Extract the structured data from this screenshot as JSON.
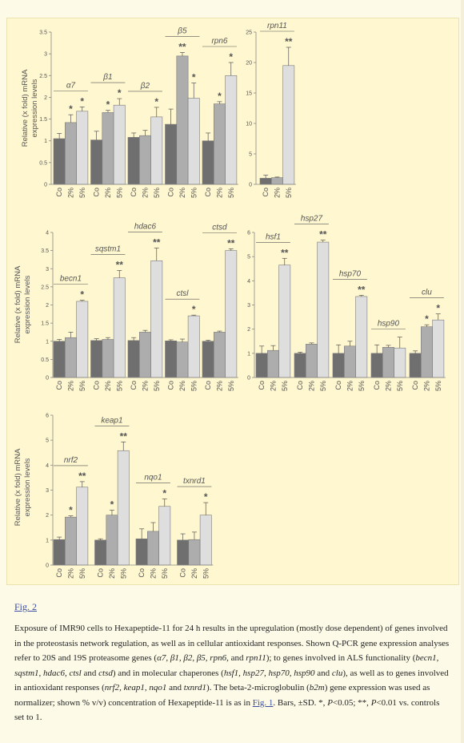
{
  "colors": {
    "background": "#fdfbe8",
    "figure_background": "#fff7cf",
    "bar_co": "#6f6f6f",
    "bar_2": "#adadad",
    "bar_5": "#dedede",
    "link": "#3a4ca0"
  },
  "figure_link": "Fig. 2",
  "caption": {
    "p1": "Exposure of IMR90 cells to Hexapeptide-11 for 24 h results in the upregulation (mostly dose dependent) of genes involved in the proteostasis network regulation, as well as in cellular antioxidant responses. Shown Q-PCR gene expression analyses refer to 20S and 19S proteasome genes (",
    "g1": "α7, β1, β2, β5, rpn6",
    "p2": ", and ",
    "g2": "rpn11",
    "p3": "); to genes involved in ALS functionality (",
    "g3": "becn1, sqstm1, hdac6, ctsl",
    "p4": " and ",
    "g4": "ctsd",
    "p5": ") and in molecular chaperones (",
    "g5": "hsf1, hsp27, hsp70, hsp90",
    "p6": " and ",
    "g6": "clu",
    "p7": "), as well as to genes involved in antioxidant responses (",
    "g7": "nrf2, keap1, nqo1",
    "p8": " and ",
    "g8": "txnrd1",
    "p9": "). The beta-2-microglobulin (",
    "g9": "b2m",
    "p10": ") gene expression was used as normalizer; shown % v/v) concentration of Hexapeptide-11 is as in ",
    "link2": "Fig. 1",
    "p11": ". Bars, ±SD. *, ",
    "p_label1": "P",
    "p12": "<0.05; **, ",
    "p_label2": "P",
    "p13": "<0.01 vs. controls set to 1."
  },
  "chart_data": [
    {
      "type": "bar",
      "ylabel": "Relative (x fold) mRNA expression levels",
      "ylim": [
        0,
        3.5
      ],
      "yticks": [
        "0",
        "0.5",
        "1",
        "1.5",
        "2",
        "2.5",
        "3",
        "3.5"
      ],
      "categories": [
        "Co",
        "2%",
        "5%"
      ],
      "groups": [
        {
          "gene": "α7",
          "values": [
            1.05,
            1.42,
            1.68
          ],
          "errors": [
            0.12,
            0.18,
            0.1
          ],
          "sig": [
            "",
            "*",
            "*"
          ]
        },
        {
          "gene": "β1",
          "values": [
            1.02,
            1.65,
            1.82
          ],
          "errors": [
            0.2,
            0.05,
            0.15
          ],
          "sig": [
            "",
            "*",
            "*"
          ]
        },
        {
          "gene": "β2",
          "values": [
            1.08,
            1.12,
            1.55
          ],
          "errors": [
            0.1,
            0.12,
            0.22
          ],
          "sig": [
            "",
            "",
            "*"
          ]
        },
        {
          "gene": "β5",
          "values": [
            1.38,
            2.95,
            1.98
          ],
          "errors": [
            0.35,
            0.08,
            0.35
          ],
          "sig": [
            "",
            "**",
            "*"
          ]
        },
        {
          "gene": "rpn6",
          "values": [
            1.0,
            1.85,
            2.5
          ],
          "errors": [
            0.18,
            0.05,
            0.3
          ],
          "sig": [
            "",
            "*",
            "*"
          ]
        }
      ]
    },
    {
      "type": "bar",
      "ylim": [
        0,
        25
      ],
      "yticks": [
        "0",
        "5",
        "10",
        "15",
        "20",
        "25"
      ],
      "categories": [
        "Co",
        "2%",
        "5%"
      ],
      "groups": [
        {
          "gene": "rpn11",
          "values": [
            1.0,
            1.1,
            19.5
          ],
          "errors": [
            0.5,
            0.1,
            3.0
          ],
          "sig": [
            "",
            "",
            "**"
          ]
        }
      ]
    },
    {
      "type": "bar",
      "ylabel": "Relative (x fold) mRNA expression levels",
      "ylim": [
        0,
        4
      ],
      "yticks": [
        "0",
        "0.5",
        "1",
        "1.5",
        "2",
        "2.5",
        "3",
        "3.5",
        "4"
      ],
      "categories": [
        "Co",
        "2%",
        "5%"
      ],
      "groups": [
        {
          "gene": "becn1",
          "values": [
            1.0,
            1.1,
            2.1
          ],
          "errors": [
            0.05,
            0.15,
            0.03
          ],
          "sig": [
            "",
            "",
            "*"
          ]
        },
        {
          "gene": "sqstm1",
          "values": [
            1.02,
            1.05,
            2.75
          ],
          "errors": [
            0.05,
            0.05,
            0.2
          ],
          "sig": [
            "",
            "",
            "**"
          ]
        },
        {
          "gene": "hdac6",
          "values": [
            1.02,
            1.25,
            3.22
          ],
          "errors": [
            0.08,
            0.05,
            0.35
          ],
          "sig": [
            "",
            "",
            "**"
          ]
        },
        {
          "gene": "ctsl",
          "values": [
            1.01,
            0.98,
            1.7
          ],
          "errors": [
            0.03,
            0.08,
            0.02
          ],
          "sig": [
            "",
            "",
            "*"
          ]
        },
        {
          "gene": "ctsd",
          "values": [
            1.0,
            1.25,
            3.5
          ],
          "errors": [
            0.03,
            0.03,
            0.05
          ],
          "sig": [
            "",
            "",
            "**"
          ]
        }
      ]
    },
    {
      "type": "bar",
      "ylim": [
        0,
        6
      ],
      "yticks": [
        "0",
        "1",
        "2",
        "3",
        "4",
        "5",
        "6"
      ],
      "categories": [
        "Co",
        "2%",
        "5%"
      ],
      "groups": [
        {
          "gene": "hsf1",
          "values": [
            1.0,
            1.12,
            4.65
          ],
          "errors": [
            0.3,
            0.2,
            0.28
          ],
          "sig": [
            "",
            "",
            "**"
          ]
        },
        {
          "gene": "hsp27",
          "values": [
            1.0,
            1.38,
            5.6
          ],
          "errors": [
            0.05,
            0.05,
            0.08
          ],
          "sig": [
            "",
            "",
            "**"
          ]
        },
        {
          "gene": "hsp70",
          "values": [
            1.0,
            1.3,
            3.35
          ],
          "errors": [
            0.35,
            0.2,
            0.05
          ],
          "sig": [
            "",
            "",
            "**"
          ]
        },
        {
          "gene": "hsp90",
          "values": [
            1.0,
            1.25,
            1.22
          ],
          "errors": [
            0.35,
            0.08,
            0.45
          ],
          "sig": [
            "",
            "",
            ""
          ]
        },
        {
          "gene": "clu",
          "values": [
            1.0,
            2.1,
            2.38
          ],
          "errors": [
            0.1,
            0.08,
            0.25
          ],
          "sig": [
            "",
            "*",
            "*"
          ]
        }
      ]
    },
    {
      "type": "bar",
      "ylabel": "Relative (x fold) mRNA expression levels",
      "ylim": [
        0,
        6
      ],
      "yticks": [
        "0",
        "1",
        "2",
        "3",
        "4",
        "5",
        "6"
      ],
      "categories": [
        "Co",
        "2%",
        "5%"
      ],
      "groups": [
        {
          "gene": "nrf2",
          "values": [
            1.02,
            1.92,
            3.12
          ],
          "errors": [
            0.1,
            0.05,
            0.22
          ],
          "sig": [
            "",
            "*",
            "**"
          ]
        },
        {
          "gene": "keap1",
          "values": [
            1.0,
            2.0,
            4.58
          ],
          "errors": [
            0.05,
            0.2,
            0.35
          ],
          "sig": [
            "",
            "*",
            "**"
          ]
        },
        {
          "gene": "nqo1",
          "values": [
            1.05,
            1.35,
            2.35
          ],
          "errors": [
            0.4,
            0.35,
            0.3
          ],
          "sig": [
            "",
            "",
            "*"
          ]
        },
        {
          "gene": "txnrd1",
          "values": [
            1.0,
            1.02,
            2.0
          ],
          "errors": [
            0.25,
            0.3,
            0.5
          ],
          "sig": [
            "",
            "",
            "*"
          ]
        }
      ]
    }
  ]
}
